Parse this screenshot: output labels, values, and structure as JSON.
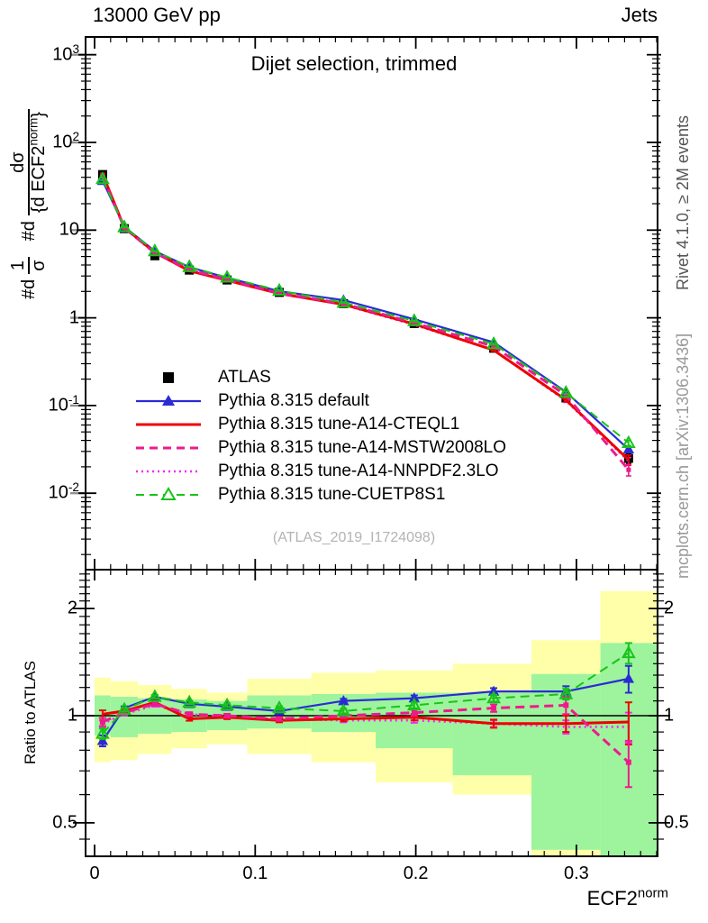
{
  "header": {
    "left_label": "13000 GeV pp",
    "right_label": "Jets"
  },
  "side_notes": {
    "right_top": "Rivet 4.1.0, ≥ 2M events",
    "right_bottom": "mcplots.cern.ch [arXiv:1306.3436]"
  },
  "plot": {
    "title": "Dijet selection, trimmed",
    "watermark": "(ATLAS_2019_I1724098)",
    "ylabel": {
      "pre1": "#d",
      "f1_num": "1",
      "f1_den": "σ",
      "pre2": "#d",
      "f2_num": "dσ",
      "f2_den": "{d ECF2",
      "f2_sup": "norm",
      "f2_close": "}"
    },
    "x_axis": {
      "title_base": "ECF2",
      "title_sup": "norm",
      "tick_labels": [
        "0",
        "0.1",
        "0.2",
        "0.3"
      ],
      "tick_values": [
        0,
        0.1,
        0.2,
        0.3
      ]
    },
    "main_y_axis": {
      "tick_labels": [
        {
          "t": "10",
          "s": "3"
        },
        {
          "t": "10",
          "s": "2"
        },
        {
          "t": "10"
        },
        {
          "t": "1"
        },
        {
          "t": "10",
          "s": "-1"
        },
        {
          "t": "10",
          "s": "-2"
        }
      ],
      "tick_values": [
        1000,
        100,
        10,
        1,
        0.1,
        0.01
      ]
    },
    "ratio_y_axis": {
      "label": "Ratio to ATLAS",
      "tick_labels": [
        "2",
        "1",
        "0.5"
      ],
      "tick_values": [
        2,
        1,
        0.5
      ]
    }
  },
  "legend": [
    {
      "key": "atlas",
      "label": "ATLAS"
    },
    {
      "key": "default",
      "label": "Pythia 8.315 default"
    },
    {
      "key": "cteql1",
      "label": "Pythia 8.315 tune-A14-CTEQL1"
    },
    {
      "key": "mstw2008lo",
      "label": "Pythia 8.315 tune-A14-MSTW2008LO"
    },
    {
      "key": "nnpdf23lo",
      "label": "Pythia 8.315 tune-A14-NNPDF2.3LO"
    },
    {
      "key": "cuetp8s1",
      "label": "Pythia 8.315 tune-CUETP8S1"
    }
  ],
  "chart_data": {
    "type": "line",
    "title": "Dijet selection, trimmed",
    "xlabel": "ECF2^norm",
    "xlim": [
      -0.0056,
      0.3505
    ],
    "main_panel": {
      "yscale": "log",
      "ylim": [
        0.00134,
        1594
      ]
    },
    "ratio_panel": {
      "yscale": "log",
      "ylim": [
        0.403,
        2.57
      ],
      "unity_line": 1
    },
    "bin_edges": [
      0,
      0.01,
      0.027,
      0.048,
      0.07,
      0.095,
      0.135,
      0.175,
      0.223,
      0.272,
      0.315,
      0.35
    ],
    "x": [
      0.005,
      0.0185,
      0.0375,
      0.059,
      0.0825,
      0.115,
      0.155,
      0.199,
      0.2485,
      0.2935,
      0.3325
    ],
    "reference": {
      "key": "atlas",
      "label": "ATLAS",
      "color": "#000000",
      "marker": "square",
      "y": [
        43,
        10.4,
        5.1,
        3.5,
        2.7,
        1.95,
        1.45,
        0.86,
        0.45,
        0.122,
        0.025
      ],
      "yerr": [
        2,
        0.4,
        0.2,
        0.12,
        0.09,
        0.06,
        0.05,
        0.035,
        0.02,
        0.008,
        0.003
      ]
    },
    "series": [
      {
        "key": "default",
        "label": "Pythia 8.315 default",
        "color": "#2b2bd5",
        "line": "solid",
        "width": 2.2,
        "marker": "triangle-filled",
        "ratio": [
          0.85,
          1.05,
          1.13,
          1.08,
          1.06,
          1.03,
          1.1,
          1.12,
          1.17,
          1.17,
          1.27
        ],
        "ratio_err": [
          0.03,
          0.012,
          0.012,
          0.012,
          0.012,
          0.012,
          0.015,
          0.02,
          0.025,
          0.04,
          0.11
        ]
      },
      {
        "key": "nnpdf23lo",
        "label": "Pythia 8.315 tune-A14-NNPDF2.3LO",
        "color": "#f32af3",
        "line": "dotted",
        "width": 2.6,
        "marker": "none",
        "ratio": [
          0.95,
          1.01,
          1.07,
          1.01,
          0.99,
          0.98,
          0.97,
          0.97,
          0.95,
          0.93,
          0.93
        ],
        "ratio_err": [
          0.02,
          0.01,
          0.01,
          0.01,
          0.01,
          0.01,
          0.012,
          0.015,
          0.02,
          0.04,
          0.09
        ]
      },
      {
        "key": "cteql1",
        "label": "Pythia 8.315 tune-A14-CTEQL1",
        "color": "#ee0000",
        "line": "solid",
        "width": 3,
        "marker": "none",
        "ratio": [
          1.01,
          1.03,
          1.09,
          0.98,
          0.99,
          0.97,
          0.98,
          0.99,
          0.95,
          0.95,
          0.96
        ],
        "ratio_err": [
          0.025,
          0.012,
          0.012,
          0.012,
          0.012,
          0.012,
          0.015,
          0.02,
          0.025,
          0.05,
          0.13
        ]
      },
      {
        "key": "mstw2008lo",
        "label": "Pythia 8.315 tune-A14-MSTW2008LO",
        "color": "#ee1a8d",
        "line": "dashed",
        "width": 3,
        "marker": "square-small",
        "ratio": [
          0.96,
          1.02,
          1.08,
          1.01,
          1.0,
          0.98,
          1.0,
          1.02,
          1.05,
          1.07,
          0.74
        ],
        "ratio_err": [
          0.025,
          0.012,
          0.012,
          0.012,
          0.012,
          0.012,
          0.015,
          0.02,
          0.025,
          0.06,
          0.11
        ]
      },
      {
        "key": "cuetp8s1",
        "label": "Pythia 8.315 tune-CUETP8S1",
        "color": "#19c319",
        "line": "dashed",
        "width": 2,
        "marker": "triangle-open",
        "ratio": [
          0.89,
          1.04,
          1.13,
          1.09,
          1.07,
          1.05,
          1.03,
          1.07,
          1.12,
          1.15,
          1.5
        ],
        "ratio_err": [
          0.03,
          0.012,
          0.012,
          0.012,
          0.012,
          0.012,
          0.015,
          0.02,
          0.025,
          0.04,
          0.1
        ]
      }
    ],
    "uncertainty_bands": {
      "yellow": {
        "color": "#ffffaa",
        "lo": [
          0.74,
          0.75,
          0.78,
          0.81,
          0.83,
          0.78,
          0.74,
          0.65,
          0.6,
          0.403,
          0.403
        ],
        "hi": [
          1.28,
          1.25,
          1.22,
          1.19,
          1.16,
          1.27,
          1.32,
          1.34,
          1.4,
          1.63,
          2.24
        ]
      },
      "green": {
        "color": "#9df49d",
        "lo": [
          0.88,
          0.87,
          0.89,
          0.9,
          0.91,
          0.92,
          0.9,
          0.81,
          0.68,
          0.42,
          0.403
        ],
        "hi": [
          1.14,
          1.13,
          1.12,
          1.11,
          1.1,
          1.14,
          1.15,
          1.16,
          1.16,
          1.31,
          1.6
        ]
      }
    }
  },
  "colors": {
    "frame": "#000000",
    "band_yellow": "#ffffaa",
    "band_green": "#9df49d",
    "watermark": "#b3b3b3",
    "note_top": "#555555",
    "note_bottom": "#999999",
    "decade_stub": "#909090"
  }
}
